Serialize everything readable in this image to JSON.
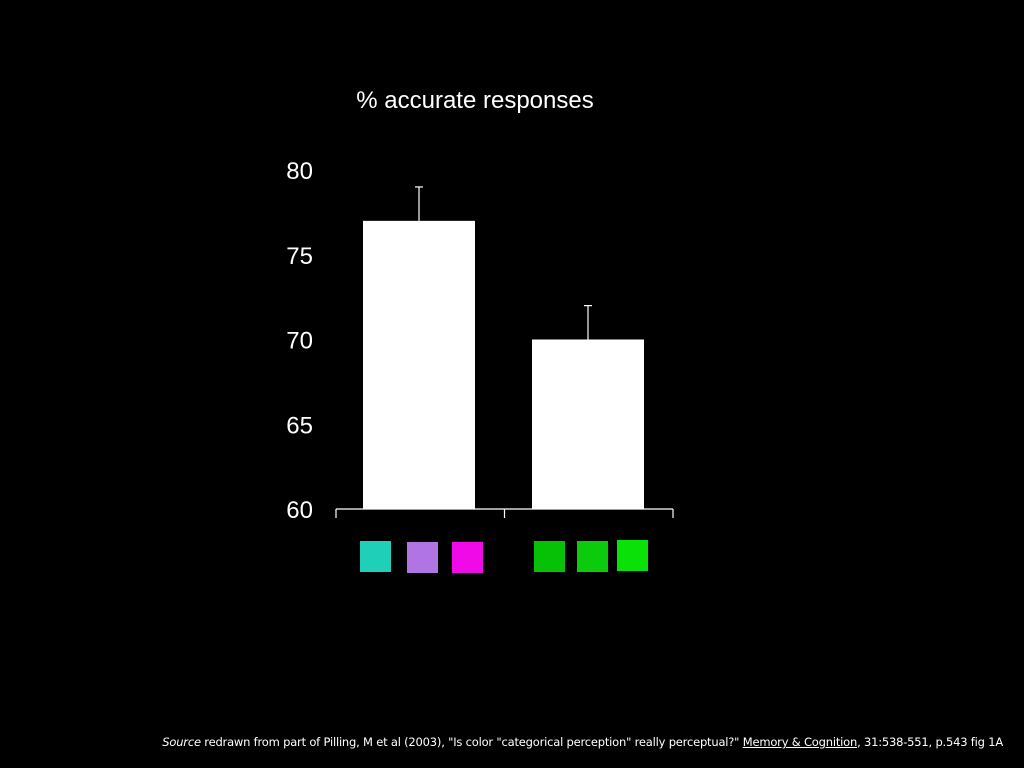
{
  "chart_data": {
    "type": "bar",
    "title": "% accurate responses",
    "xlabel": "",
    "ylabel": "",
    "ylim": [
      60,
      80
    ],
    "yticks": [
      "60",
      "65",
      "70",
      "75",
      "80"
    ],
    "grid": false,
    "bars": [
      {
        "value": 77,
        "error": 2,
        "color": "#ffffff",
        "swatches": [
          "#1fcfb7",
          "#b174e3",
          "#f00ae8"
        ]
      },
      {
        "value": 70,
        "error": 2,
        "color": "#ffffff",
        "swatches": [
          "#06c106",
          "#0ccb0c",
          "#09e109"
        ]
      }
    ]
  },
  "caption": {
    "source_word": "Source",
    "text": " redrawn from part of Pilling, M et al (2003), \"Is color \"categorical perception\" really perceptual?\" ",
    "journal": "Memory & Cognition",
    "citation": ", 31:538-551, p.543 fig 1A"
  }
}
